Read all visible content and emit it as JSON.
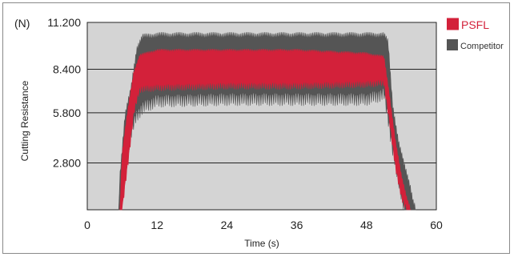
{
  "chart_data": {
    "type": "area",
    "unit_label": "(N)",
    "xlabel": "Time (s)",
    "ylabel": "Cutting Resistance",
    "xlim": [
      0,
      60
    ],
    "ylim": [
      0,
      11.2
    ],
    "x_ticks": [
      "0",
      "12",
      "24",
      "36",
      "48",
      "60"
    ],
    "y_ticks": [
      "11.200",
      "8.400",
      "5.800",
      "2.800"
    ],
    "grid": true,
    "legend_position": "right",
    "series": [
      {
        "name": "Competitor",
        "color": "#555555",
        "x": [
          5.4,
          5.6,
          6.5,
          7.5,
          8.5,
          9.5,
          12,
          24,
          36,
          48,
          51,
          51.7,
          52.5,
          53.5,
          54.5,
          55.5,
          56.0,
          56.5
        ],
        "upper": [
          0.0,
          2.0,
          5.6,
          7.2,
          9.6,
          10.3,
          10.4,
          10.4,
          10.4,
          10.4,
          10.4,
          10.0,
          6.2,
          4.0,
          2.6,
          1.4,
          0.5,
          0.0
        ],
        "lower": [
          0.0,
          0.0,
          2.4,
          4.6,
          5.6,
          6.1,
          6.5,
          6.6,
          6.6,
          6.6,
          6.9,
          5.5,
          3.5,
          1.8,
          0.0,
          0.0,
          0.0,
          0.0
        ]
      },
      {
        "name": "PSFL",
        "color": "#d3213a",
        "x": [
          5.6,
          6.0,
          7.0,
          8.0,
          9.0,
          12,
          24,
          36,
          48,
          51,
          51.8,
          53.0,
          54.0,
          55.0,
          55.6
        ],
        "upper": [
          0.0,
          3.4,
          6.0,
          8.2,
          9.2,
          9.5,
          9.5,
          9.5,
          9.3,
          9.1,
          7.2,
          4.0,
          2.0,
          0.6,
          0.0
        ],
        "lower": [
          0.0,
          0.0,
          2.8,
          5.8,
          7.2,
          7.3,
          7.4,
          7.4,
          7.5,
          7.6,
          5.6,
          2.5,
          0.7,
          0.0,
          0.0
        ]
      }
    ]
  }
}
